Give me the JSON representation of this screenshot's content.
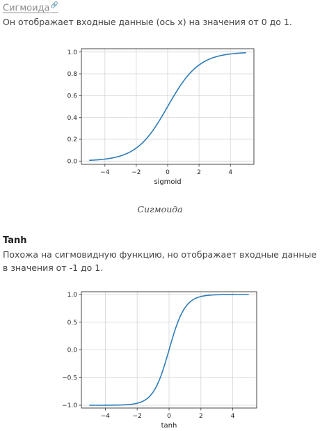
{
  "section1": {
    "title": "Сигмоида",
    "anchor_icon": "link-anchor-icon",
    "description": "Он отображает входные данные (ось x) на значения от 0 до 1.",
    "caption": "Сигмоида"
  },
  "section2": {
    "title": "Tanh",
    "description_line1": "Похожа на сигмовидную функцию, но отображает входные данные",
    "description_line2": "в значения от -1 до 1."
  },
  "chart_data": [
    {
      "type": "line",
      "title": "",
      "xlabel": "sigmoid",
      "ylabel": "",
      "function": "sigmoid",
      "x_range": [
        -5,
        5
      ],
      "xlim": [
        -5.5,
        5.5
      ],
      "ylim": [
        -0.03,
        1.03
      ],
      "xticks": [
        -4,
        -2,
        0,
        2,
        4
      ],
      "xtick_labels": [
        "−4",
        "−2",
        "0",
        "2",
        "4"
      ],
      "yticks": [
        0.0,
        0.2,
        0.4,
        0.6,
        0.8,
        1.0
      ],
      "ytick_labels": [
        "0.0",
        "0.2",
        "0.4",
        "0.6",
        "0.8",
        "1.0"
      ],
      "grid": true,
      "line_color": "#2f7bb6",
      "x": [
        -5,
        -4,
        -3,
        -2,
        -1,
        0,
        1,
        2,
        3,
        4,
        5
      ],
      "y": [
        0.007,
        0.018,
        0.047,
        0.119,
        0.269,
        0.5,
        0.731,
        0.881,
        0.953,
        0.982,
        0.993
      ]
    },
    {
      "type": "line",
      "title": "",
      "xlabel": "tanh",
      "ylabel": "",
      "function": "tanh",
      "x_range": [
        -5,
        5
      ],
      "xlim": [
        -5.5,
        5.5
      ],
      "ylim": [
        -1.05,
        1.05
      ],
      "xticks": [
        -4,
        -2,
        0,
        2,
        4
      ],
      "xtick_labels": [
        "−4",
        "−2",
        "0",
        "2",
        "4"
      ],
      "yticks": [
        -1.0,
        -0.5,
        0.0,
        0.5,
        1.0
      ],
      "ytick_labels": [
        "−1.0",
        "−0.5",
        "0.0",
        "0.5",
        "1.0"
      ],
      "grid": true,
      "line_color": "#2f7bb6",
      "x": [
        -5,
        -4,
        -3,
        -2,
        -1,
        0,
        1,
        2,
        3,
        4,
        5
      ],
      "y": [
        -1.0,
        -0.999,
        -0.995,
        -0.964,
        -0.762,
        0.0,
        0.762,
        0.964,
        0.995,
        0.999,
        1.0
      ]
    }
  ]
}
